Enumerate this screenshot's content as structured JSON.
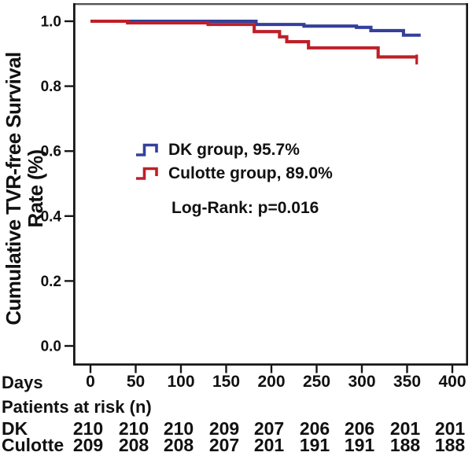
{
  "figure": {
    "y_axis_title_lines": [
      "Cumulative TVR-free Survival",
      "Rate (%)"
    ],
    "x_axis_label": "Days"
  },
  "chart_data": {
    "type": "line",
    "subtype": "kaplan_meier_step",
    "title": "",
    "xlabel": "Days",
    "ylabel": "Cumulative TVR-free Survival Rate (%)",
    "grid": false,
    "legend_position": "center-left",
    "xlim": [
      -19,
      418
    ],
    "ylim": [
      -0.06,
      1.056
    ],
    "x_ticks": [
      0,
      50,
      100,
      150,
      200,
      250,
      300,
      350,
      400
    ],
    "y_tick_values": [
      1.0,
      0.8,
      0.6,
      0.4,
      0.2,
      0.0
    ],
    "y_tick_labels": [
      "1.0",
      "0.8",
      "0.6",
      "0.4",
      "0.2",
      "0.0"
    ],
    "annotation": "Log-Rank: p=0.016",
    "series": [
      {
        "name": "DK group",
        "color": "#33409b",
        "final_value_pct": 95.7,
        "end_day": 365,
        "end_censor_tick": false,
        "steps_day_survival": [
          [
            0,
            1.0
          ],
          [
            183,
            0.99
          ],
          [
            236,
            0.985
          ],
          [
            294,
            0.981
          ],
          [
            310,
            0.971
          ],
          [
            346,
            0.957
          ]
        ]
      },
      {
        "name": "Culotte group",
        "color": "#bf1f28",
        "final_value_pct": 89.0,
        "end_day": 362,
        "end_censor_tick": true,
        "steps_day_survival": [
          [
            0,
            1.0
          ],
          [
            41,
            0.995
          ],
          [
            130,
            0.99
          ],
          [
            181,
            0.968
          ],
          [
            209,
            0.952
          ],
          [
            217,
            0.937
          ],
          [
            241,
            0.918
          ],
          [
            318,
            0.89
          ]
        ]
      }
    ]
  },
  "legend": {
    "items": [
      {
        "label": "DK group, 95.7%",
        "color": "#33409b"
      },
      {
        "label": "Culotte group, 89.0%",
        "color": "#bf1f28"
      }
    ]
  },
  "risk_table": {
    "title": "Patients at risk (n)",
    "rows": [
      {
        "label": "DK",
        "values": [
          "210",
          "210",
          "210",
          "209",
          "207",
          "206",
          "206",
          "201",
          "201"
        ]
      },
      {
        "label": "Culotte",
        "values": [
          "209",
          "208",
          "208",
          "207",
          "201",
          "191",
          "191",
          "188",
          "188"
        ]
      }
    ]
  }
}
